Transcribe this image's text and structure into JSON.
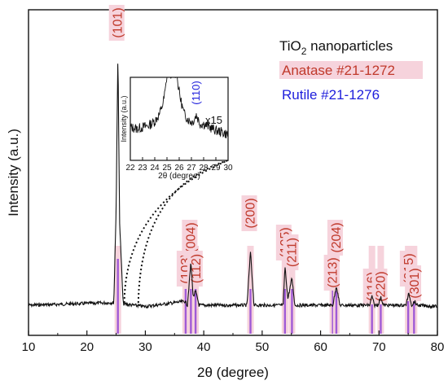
{
  "chart_data": {
    "type": "line",
    "xlabel": "2θ (degree)",
    "ylabel": "Intensity (a.u.)",
    "xlim": [
      10,
      80
    ],
    "xticks": [
      10,
      20,
      30,
      40,
      50,
      60,
      70,
      80
    ],
    "series": [
      {
        "x": [
          10,
          24.6,
          25.0,
          25.3,
          25.6,
          26.2,
          30,
          36.8,
          37.2,
          37.8,
          38.2,
          38.6,
          39.2,
          47.4,
          48.0,
          48.6,
          53.6,
          53.9,
          54.4,
          55.1,
          55.6,
          62.1,
          62.7,
          63.3,
          68.4,
          68.8,
          69.2,
          69.8,
          70.3,
          70.8,
          74.6,
          75.1,
          75.6,
          76.1,
          76.5,
          80
        ],
        "y": [
          0.3,
          0.4,
          4.0,
          10.0,
          3.5,
          0.35,
          0.25,
          0.45,
          0.3,
          1.95,
          0.6,
          0.85,
          0.3,
          0.3,
          2.35,
          0.3,
          0.3,
          1.8,
          0.55,
          1.35,
          0.3,
          0.3,
          1.05,
          0.3,
          0.3,
          0.65,
          0.3,
          0.3,
          0.6,
          0.3,
          0.3,
          0.75,
          0.3,
          0.45,
          0.3,
          0.25
        ]
      }
    ],
    "reference_lines": {
      "anatase": [
        25.3,
        36.9,
        37.8,
        38.6,
        48.0,
        53.9,
        55.1,
        62.1,
        62.7,
        68.8,
        70.3,
        75.0,
        76.0
      ],
      "rutile": []
    },
    "peak_labels": [
      {
        "text": "(101)",
        "x": 25.3
      },
      {
        "text": "(103)",
        "x": 36.9
      },
      {
        "text": "(004)",
        "x": 37.8
      },
      {
        "text": "(112)",
        "x": 38.7
      },
      {
        "text": "(200)",
        "x": 48.0
      },
      {
        "text": "(105)",
        "x": 53.9
      },
      {
        "text": "(211)",
        "x": 55.1
      },
      {
        "text": "(213)",
        "x": 62.1
      },
      {
        "text": "(204)",
        "x": 62.7
      },
      {
        "text": "(116)",
        "x": 68.8
      },
      {
        "text": "(220)",
        "x": 70.3
      },
      {
        "text": "(215)",
        "x": 75.1
      },
      {
        "text": "(301)",
        "x": 76.1
      }
    ],
    "legend": {
      "title_main": "TiO",
      "title_sub": "2",
      "title_rest": " nanoparticles",
      "anatase": "Anatase #21-1272",
      "rutile": "Rutile #21-1276"
    },
    "inset": {
      "xlabel": "2θ (degree)",
      "ylabel": "Intensity (a.u.)",
      "xlim": [
        22,
        30
      ],
      "xticks": [
        22,
        23,
        24,
        25,
        26,
        27,
        28,
        29,
        30
      ],
      "annotation": "(110)",
      "annotation_x": 27.4,
      "multiplier": "x15",
      "series": [
        {
          "x": [
            22,
            22.5,
            23,
            23.5,
            24,
            24.4,
            24.7,
            24.9,
            25.0,
            25.1,
            25.3,
            25.6,
            25.8,
            25.9,
            26.1,
            26.4,
            26.8,
            27.1,
            27.4,
            27.7,
            28.0,
            28.5,
            29.0,
            29.5,
            30
          ],
          "y": [
            0.4,
            0.38,
            0.4,
            0.42,
            0.47,
            0.56,
            0.7,
            0.88,
            1.05,
            1.05,
            1.05,
            1.05,
            1.05,
            0.92,
            0.74,
            0.56,
            0.48,
            0.46,
            0.55,
            0.44,
            0.44,
            0.4,
            0.36,
            0.34,
            0.31
          ]
        }
      ]
    }
  }
}
